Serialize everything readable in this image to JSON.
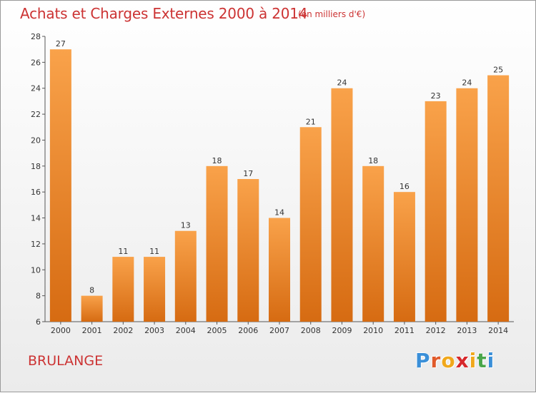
{
  "title": "Achats et Charges Externes 2000 à 2014",
  "subtitle": "(en milliers d'€)",
  "commune": "BRULANGE",
  "logo": {
    "text": "Proxiti",
    "letter_colors": [
      "#3a8fd8",
      "#e05a2b",
      "#f0a81c",
      "#d6282c",
      "#f0a81c",
      "#4aa64a",
      "#3a8fd8"
    ]
  },
  "colors": {
    "bar_top": "#f9a24a",
    "bar_bottom": "#d66b12",
    "title": "#cc3333"
  },
  "chart_data": {
    "type": "bar",
    "title": "Achats et Charges Externes 2000 à 2014",
    "subtitle": "(en milliers d'€)",
    "xlabel": "",
    "ylabel": "",
    "categories": [
      "2000",
      "2001",
      "2002",
      "2003",
      "2004",
      "2005",
      "2006",
      "2007",
      "2008",
      "2009",
      "2010",
      "2011",
      "2012",
      "2013",
      "2014"
    ],
    "values": [
      27,
      8,
      11,
      11,
      13,
      18,
      17,
      14,
      21,
      24,
      18,
      16,
      23,
      24,
      25
    ],
    "ylim": [
      6,
      28
    ],
    "yticks": [
      6,
      8,
      10,
      12,
      14,
      16,
      18,
      20,
      22,
      24,
      26,
      28
    ],
    "grid": false,
    "legend": "none"
  }
}
